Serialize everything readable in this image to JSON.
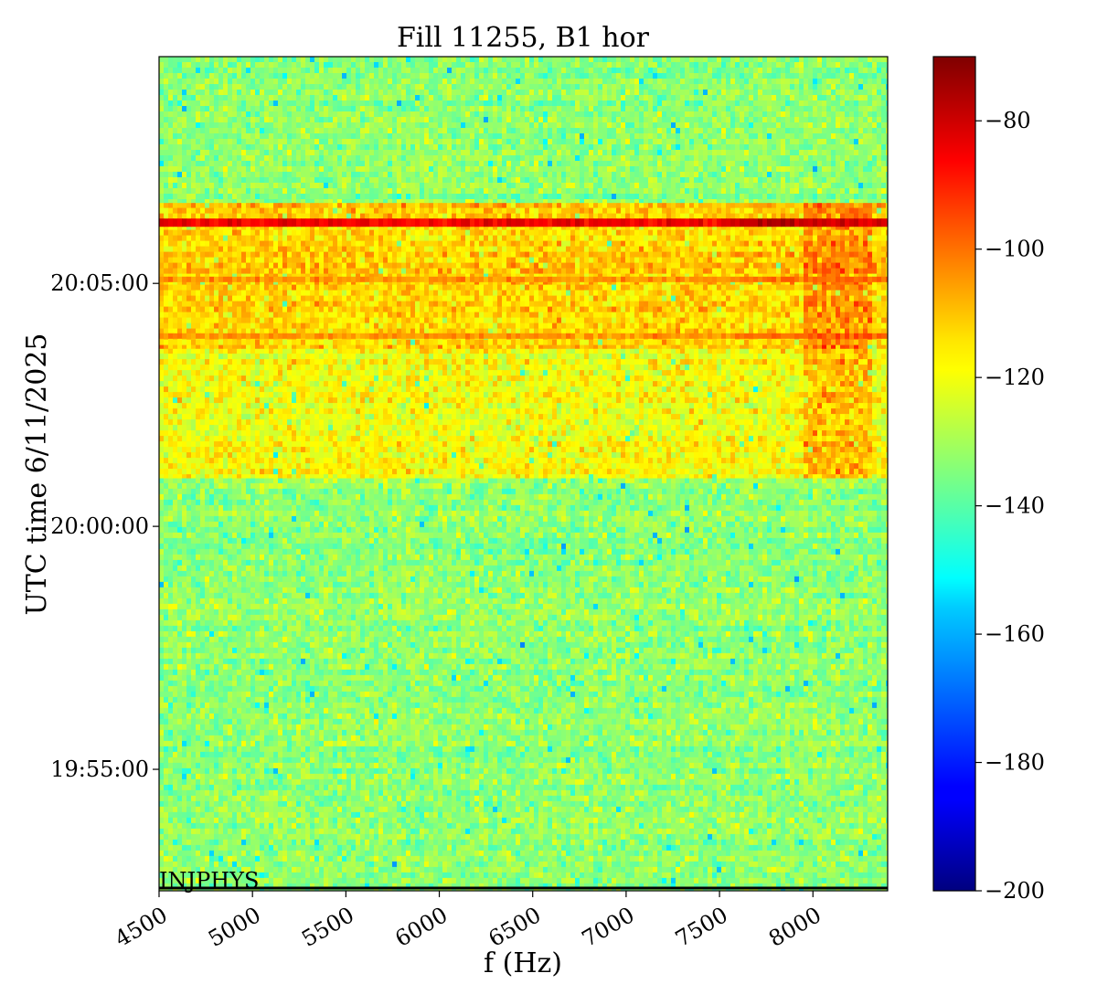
{
  "chart_data": {
    "type": "heatmap",
    "title": "Fill 11255, B1 hor",
    "xlabel": "f (Hz)",
    "ylabel": "UTC time 6/11/2025",
    "xlim": [
      4500,
      8400
    ],
    "x_ticks": [
      4500,
      5000,
      5500,
      6000,
      6500,
      7000,
      7500,
      8000
    ],
    "y_ticks": [
      "19:55:00",
      "20:00:00",
      "20:05:00"
    ],
    "y_range_minutes": {
      "start": "19:52:30",
      "end": "20:09:40"
    },
    "colorbar": {
      "colormap": "jet",
      "range": [
        -200,
        -70
      ],
      "ticks": [
        -80,
        -100,
        -120,
        -140,
        -160,
        -180,
        -200
      ]
    },
    "annotation": "INJPHYS",
    "regions": [
      {
        "from": "19:52:30",
        "to": "20:01:00",
        "level": -133
      },
      {
        "from": "20:01:00",
        "to": "20:03:40",
        "level": -120
      },
      {
        "from": "20:03:40",
        "to": "20:06:40",
        "level": -113
      },
      {
        "from": "20:06:40",
        "to": "20:09:40",
        "level": -133
      }
    ],
    "bright_lines": [
      {
        "time": "20:06:15",
        "level": -85
      },
      {
        "time": "20:05:05",
        "level": -105
      },
      {
        "time": "20:03:55",
        "level": -105
      }
    ],
    "hot_band_hz": [
      7950,
      8300
    ]
  }
}
